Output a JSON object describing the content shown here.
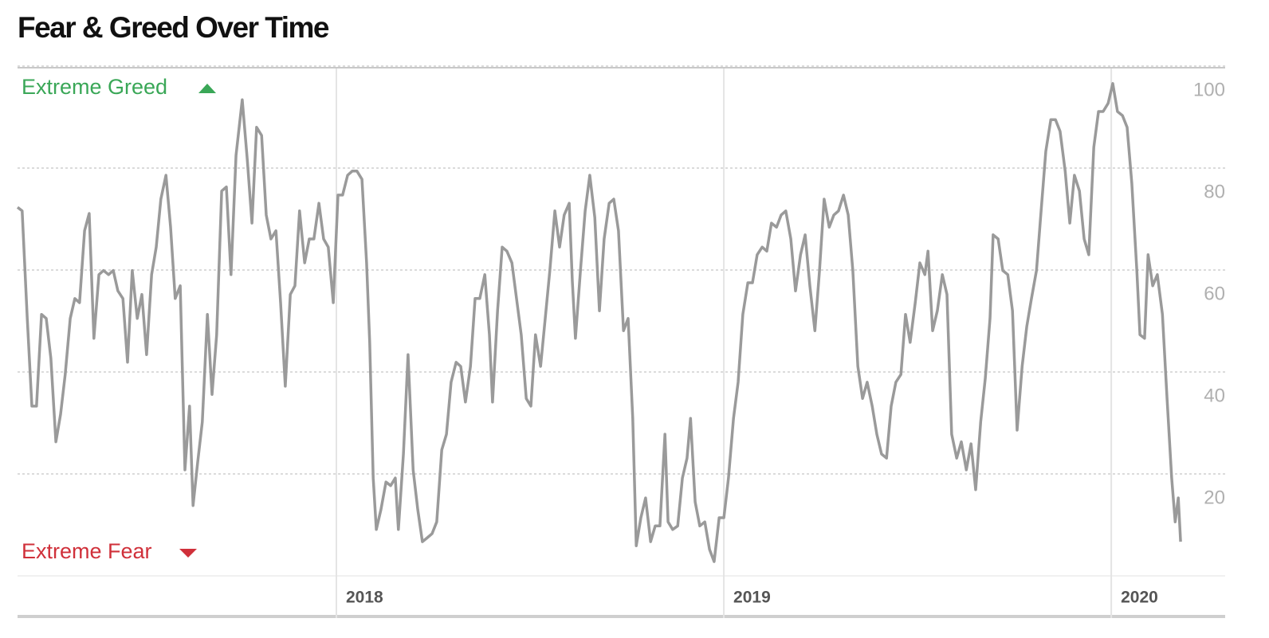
{
  "chart_data": {
    "type": "line",
    "title": "Fear & Greed Over Time",
    "annotations": [
      "Extreme Greed",
      "Extreme Fear"
    ],
    "color": "#9a9a9a",
    "xlim": [
      2017.177,
      2020.294
    ],
    "xticks": [
      2018,
      2019,
      2020
    ],
    "ylim": [
      0,
      100
    ],
    "yticks": [
      20,
      40,
      60,
      80,
      100
    ],
    "grid": true,
    "x": [
      2017.177,
      2017.189,
      2017.202,
      2017.214,
      2017.226,
      2017.239,
      2017.251,
      2017.263,
      2017.276,
      2017.288,
      2017.3,
      2017.313,
      2017.325,
      2017.337,
      2017.35,
      2017.362,
      2017.374,
      2017.387,
      2017.399,
      2017.412,
      2017.424,
      2017.436,
      2017.449,
      2017.461,
      2017.473,
      2017.486,
      2017.498,
      2017.51,
      2017.523,
      2017.535,
      2017.547,
      2017.56,
      2017.572,
      2017.584,
      2017.597,
      2017.609,
      2017.621,
      2017.63,
      2017.642,
      2017.654,
      2017.667,
      2017.679,
      2017.691,
      2017.704,
      2017.716,
      2017.728,
      2017.741,
      2017.757,
      2017.77,
      2017.782,
      2017.794,
      2017.807,
      2017.819,
      2017.831,
      2017.844,
      2017.856,
      2017.868,
      2017.881,
      2017.893,
      2017.905,
      2017.918,
      2017.93,
      2017.942,
      2017.955,
      2017.967,
      2017.979,
      2017.992,
      2018.004,
      2018.016,
      2018.029,
      2018.041,
      2018.053,
      2018.066,
      2018.078,
      2018.086,
      2018.095,
      2018.103,
      2018.115,
      2018.128,
      2018.14,
      2018.152,
      2018.16,
      2018.173,
      2018.185,
      2018.198,
      2018.21,
      2018.222,
      2018.235,
      2018.247,
      2018.259,
      2018.272,
      2018.284,
      2018.296,
      2018.309,
      2018.321,
      2018.333,
      2018.346,
      2018.358,
      2018.37,
      2018.383,
      2018.395,
      2018.403,
      2018.416,
      2018.428,
      2018.44,
      2018.453,
      2018.465,
      2018.477,
      2018.49,
      2018.502,
      2018.514,
      2018.527,
      2018.539,
      2018.551,
      2018.564,
      2018.576,
      2018.588,
      2018.601,
      2018.609,
      2018.617,
      2018.63,
      2018.642,
      2018.654,
      2018.667,
      2018.679,
      2018.691,
      2018.704,
      2018.716,
      2018.728,
      2018.741,
      2018.753,
      2018.765,
      2018.774,
      2018.786,
      2018.798,
      2018.811,
      2018.823,
      2018.835,
      2018.848,
      2018.856,
      2018.868,
      2018.881,
      2018.893,
      2018.905,
      2018.914,
      2018.926,
      2018.938,
      2018.951,
      2018.963,
      2018.975,
      2018.988,
      2019.0,
      2019.012,
      2019.025,
      2019.037,
      2019.049,
      2019.062,
      2019.074,
      2019.086,
      2019.099,
      2019.111,
      2019.123,
      2019.136,
      2019.148,
      2019.16,
      2019.173,
      2019.185,
      2019.198,
      2019.21,
      2019.222,
      2019.235,
      2019.247,
      2019.259,
      2019.272,
      2019.284,
      2019.296,
      2019.309,
      2019.321,
      2019.333,
      2019.346,
      2019.358,
      2019.37,
      2019.383,
      2019.395,
      2019.407,
      2019.42,
      2019.432,
      2019.444,
      2019.457,
      2019.469,
      2019.481,
      2019.494,
      2019.506,
      2019.519,
      2019.527,
      2019.539,
      2019.551,
      2019.564,
      2019.576,
      2019.588,
      2019.601,
      2019.613,
      2019.626,
      2019.638,
      2019.65,
      2019.663,
      2019.675,
      2019.687,
      2019.695,
      2019.708,
      2019.72,
      2019.733,
      2019.745,
      2019.757,
      2019.77,
      2019.782,
      2019.794,
      2019.807,
      2019.819,
      2019.831,
      2019.844,
      2019.856,
      2019.868,
      2019.881,
      2019.893,
      2019.905,
      2019.918,
      2019.93,
      2019.942,
      2019.955,
      2019.967,
      2019.979,
      2019.992,
      2020.004,
      2020.016,
      2020.029,
      2020.041,
      2020.053,
      2020.066,
      2020.074,
      2020.086,
      2020.095,
      2020.107,
      2020.119,
      2020.132,
      2020.144,
      2020.156,
      2020.165,
      2020.173,
      2020.179
    ],
    "values": [
      72.3,
      71.6,
      50.5,
      33.3,
      33.3,
      51.3,
      50.5,
      42.7,
      26.3,
      31.7,
      39.5,
      50.5,
      54.4,
      53.6,
      67.7,
      71.1,
      46.6,
      59.1,
      59.9,
      59.1,
      59.9,
      55.9,
      54.4,
      41.9,
      59.9,
      50.5,
      55.2,
      43.4,
      59.1,
      64.5,
      73.9,
      78.6,
      68.4,
      54.4,
      56.9,
      20.8,
      33.3,
      13.8,
      22.3,
      30.2,
      51.3,
      35.6,
      47.3,
      75.5,
      76.3,
      59.1,
      82.5,
      93.4,
      81.7,
      69.2,
      88.0,
      86.4,
      70.8,
      66.1,
      67.7,
      53.6,
      37.2,
      55.2,
      56.9,
      71.6,
      61.4,
      66.1,
      66.1,
      73.1,
      66.1,
      64.5,
      53.6,
      74.7,
      74.7,
      78.6,
      79.4,
      79.4,
      77.8,
      61.4,
      45.8,
      19.2,
      9.1,
      13.0,
      18.4,
      17.7,
      19.2,
      9.1,
      23.9,
      43.4,
      20.8,
      13.0,
      6.7,
      7.5,
      8.3,
      10.6,
      24.7,
      27.8,
      38.0,
      41.9,
      41.1,
      34.1,
      41.1,
      54.4,
      54.4,
      59.1,
      47.3,
      34.1,
      52.0,
      64.5,
      63.7,
      61.4,
      54.4,
      47.3,
      34.8,
      33.3,
      47.3,
      41.1,
      50.5,
      59.9,
      71.6,
      64.5,
      70.8,
      73.1,
      57.8,
      46.6,
      59.9,
      71.6,
      78.6,
      70.3,
      52.0,
      66.1,
      73.1,
      73.9,
      67.7,
      48.1,
      50.5,
      30.9,
      5.9,
      11.4,
      15.3,
      6.7,
      9.8,
      9.8,
      27.8,
      10.6,
      9.1,
      9.8,
      19.2,
      23.1,
      30.9,
      14.5,
      9.8,
      10.6,
      5.2,
      2.8,
      11.4,
      11.4,
      19.2,
      30.9,
      38.0,
      51.3,
      57.5,
      57.5,
      63.0,
      64.5,
      63.7,
      69.2,
      68.4,
      70.8,
      71.6,
      66.1,
      55.9,
      63.0,
      66.9,
      56.9,
      48.1,
      59.9,
      73.9,
      68.4,
      70.8,
      71.6,
      74.7,
      70.8,
      59.9,
      41.1,
      34.8,
      38.0,
      33.3,
      27.8,
      23.9,
      23.1,
      33.3,
      38.0,
      39.5,
      51.3,
      45.8,
      53.6,
      61.4,
      59.1,
      63.7,
      48.1,
      52.0,
      59.1,
      55.2,
      27.8,
      23.1,
      26.3,
      20.8,
      25.9,
      16.9,
      30.2,
      38.8,
      50.5,
      66.9,
      66.1,
      59.9,
      59.1,
      52.0,
      28.6,
      41.1,
      48.9,
      54.4,
      59.9,
      71.6,
      83.3,
      89.5,
      89.5,
      87.2,
      79.4,
      69.2,
      78.6,
      75.5,
      66.1,
      63.0,
      84.1,
      91.1,
      91.1,
      92.7,
      96.6,
      91.1,
      90.3,
      88.0,
      77.0,
      59.9,
      47.3,
      46.6,
      63.0,
      56.9,
      59.1,
      51.3,
      34.8,
      19.2,
      10.6,
      15.3,
      6.7
    ]
  }
}
